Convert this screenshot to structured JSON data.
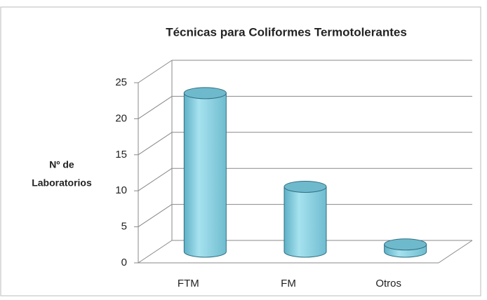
{
  "chart_data": {
    "type": "bar3d",
    "title": "Técnicas para Coliformes Termotolerantes",
    "y_label": [
      "Nº de",
      "Laboratorios"
    ],
    "categories": [
      "FTM",
      "FM",
      "Otros"
    ],
    "values": [
      22,
      9,
      1
    ],
    "color": "#8fd4e4",
    "ylim": [
      0,
      25
    ],
    "yticks": [
      0,
      5,
      10,
      15,
      20,
      25
    ],
    "grid": true
  }
}
